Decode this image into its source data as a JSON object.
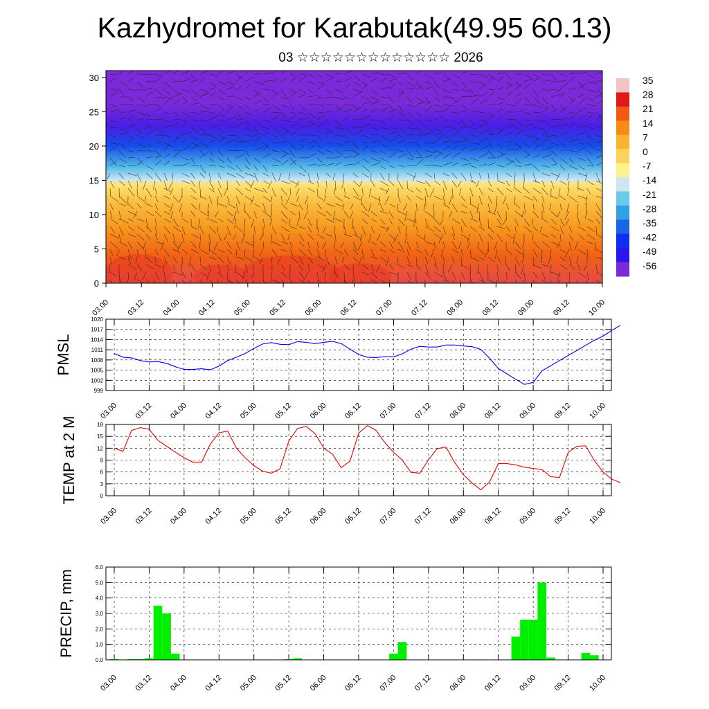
{
  "title": "Kazhydromet for Karabutak(49.95 60.13)",
  "subtitle": "03 ☆☆☆☆☆☆☆☆☆☆☆☆☆ 2026",
  "time_ticks": [
    "03.00",
    "03.12",
    "04.00",
    "04.12",
    "05.00",
    "05.12",
    "06.00",
    "06.12",
    "07.00",
    "07.12",
    "08.00",
    "08.12",
    "09.00",
    "09.12",
    "10.00"
  ],
  "chart_data": [
    {
      "type": "heatmap",
      "name": "cross-section",
      "y_ticks": [
        "0",
        "5",
        "10",
        "15",
        "20",
        "25",
        "30"
      ],
      "ylim": [
        0,
        31
      ],
      "colorbar_labels": [
        "35",
        "28",
        "21",
        "14",
        "7",
        "0",
        "-7",
        "-14",
        "-21",
        "-28",
        "-35",
        "-42",
        "-49",
        "-56"
      ],
      "colorbar_colors": [
        "#f4c4c4",
        "#e01818",
        "#f05a14",
        "#f78b14",
        "#fbb432",
        "#fcd25a",
        "#fff28c",
        "#cfe6f2",
        "#6cc8ec",
        "#2fa2e6",
        "#1a64e6",
        "#0f2ef0",
        "#2a14f0",
        "#7a2ad8"
      ],
      "temperature_by_height": [
        {
          "height": 0,
          "temp": 30
        },
        {
          "height": 4,
          "temp": 20
        },
        {
          "height": 8,
          "temp": 12
        },
        {
          "height": 12,
          "temp": 4
        },
        {
          "height": 14.5,
          "temp": -4
        },
        {
          "height": 15,
          "temp": -14
        },
        {
          "height": 17,
          "temp": -24
        },
        {
          "height": 20,
          "temp": -38
        },
        {
          "height": 23,
          "temp": -52
        },
        {
          "height": 26,
          "temp": -58
        },
        {
          "height": 31,
          "temp": -62
        }
      ]
    },
    {
      "type": "line",
      "name": "PMSL",
      "ylabel": "PMSL",
      "y_ticks": [
        "999",
        "1002",
        "1005",
        "1008",
        "1011",
        "1014",
        "1017",
        "1020"
      ],
      "ylim": [
        999,
        1020
      ],
      "color": "#0000ee",
      "values": [
        1009.9,
        1008.8,
        1008.6,
        1007.8,
        1007.4,
        1007.5,
        1007.0,
        1006.0,
        1005.2,
        1005.2,
        1005.4,
        1005.1,
        1006.2,
        1007.8,
        1008.8,
        1009.9,
        1011.4,
        1012.7,
        1013.1,
        1012.6,
        1012.5,
        1013.4,
        1013.2,
        1012.8,
        1013.2,
        1013.5,
        1012.8,
        1011.2,
        1009.6,
        1008.8,
        1008.7,
        1009.0,
        1008.9,
        1009.8,
        1011.2,
        1012.0,
        1011.8,
        1011.8,
        1012.4,
        1012.4,
        1012.1,
        1011.9,
        1011.1,
        1008.5,
        1005.5,
        1003.9,
        1002.3,
        1000.8,
        1001.4,
        1004.8,
        1006.3,
        1007.8,
        1009.3,
        1010.8,
        1012.3,
        1013.8,
        1015.0,
        1016.7,
        1018.2
      ]
    },
    {
      "type": "line",
      "name": "TEMP at 2 M",
      "ylabel": "TEMP at 2 M",
      "y_ticks": [
        "0",
        "3",
        "6",
        "9",
        "12",
        "15",
        "18"
      ],
      "ylim": [
        0,
        18
      ],
      "color": "#ee0000",
      "values": [
        12.0,
        11.2,
        16.5,
        17.2,
        16.8,
        14.0,
        12.5,
        11.0,
        9.6,
        8.5,
        8.5,
        13.0,
        15.9,
        16.3,
        12.0,
        9.6,
        7.6,
        6.2,
        5.7,
        6.8,
        13.8,
        17.0,
        17.5,
        15.7,
        12.0,
        10.5,
        7.1,
        8.7,
        15.8,
        17.7,
        16.5,
        13.4,
        11.0,
        9.0,
        5.9,
        5.7,
        9.1,
        11.9,
        12.3,
        8.4,
        5.3,
        3.2,
        1.5,
        3.5,
        8.1,
        8.1,
        7.8,
        7.2,
        6.9,
        6.6,
        4.8,
        4.6,
        10.9,
        12.5,
        12.6,
        8.9,
        6.0,
        4.2,
        3.3
      ]
    },
    {
      "type": "bar",
      "name": "PRECIP, mm",
      "ylabel": "PRECIP, mm",
      "y_ticks": [
        "0.0",
        "1.0",
        "2.0",
        "3.0",
        "4.0",
        "5.0",
        "6.0"
      ],
      "ylim": [
        0,
        6
      ],
      "color": "#00ee00",
      "values": [
        0.05,
        0.0,
        0.05,
        0.05,
        0.1,
        3.5,
        3.0,
        0.4,
        0,
        0,
        0,
        0,
        0,
        0,
        0,
        0,
        0,
        0,
        0,
        0,
        0.05,
        0.1,
        0,
        0,
        0,
        0,
        0,
        0,
        0,
        0,
        0,
        0,
        0.4,
        1.15,
        0,
        0,
        0,
        0,
        0,
        0,
        0,
        0,
        0,
        0,
        0,
        0,
        1.5,
        2.6,
        2.6,
        5.0,
        0.15,
        0,
        0,
        0,
        0.45,
        0.3,
        0,
        0,
        0
      ]
    }
  ]
}
